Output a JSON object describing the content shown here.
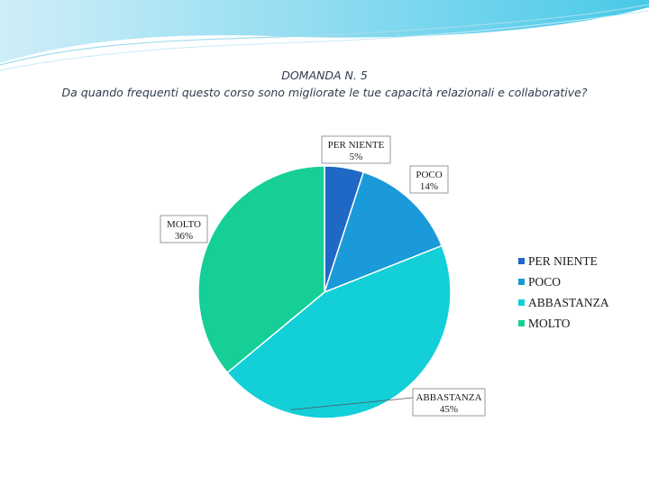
{
  "title_line1": "DOMANDA N. 5",
  "title_line2": "Da quando frequenti questo corso sono migliorate le tue capacità relazionali e collaborative?",
  "chart_data": {
    "type": "pie",
    "title": "",
    "start_angle_deg": 0,
    "direction": "clockwise",
    "legend_position": "right",
    "slices": [
      {
        "label": "PER NIENTE",
        "value": 5,
        "display": "5%",
        "color": "#1f68c6"
      },
      {
        "label": "POCO",
        "value": 14,
        "display": "14%",
        "color": "#1a9ad8"
      },
      {
        "label": "ABBASTANZA",
        "value": 45,
        "display": "45%",
        "color": "#12cfd8"
      },
      {
        "label": "MOLTO",
        "value": 36,
        "display": "36%",
        "color": "#15cf96"
      }
    ]
  }
}
